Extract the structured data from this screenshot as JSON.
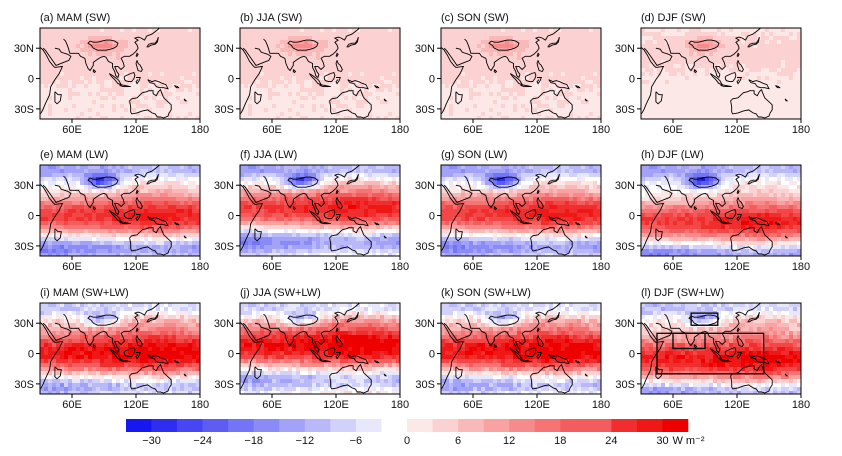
{
  "chart_data": {
    "type": "heatmap",
    "layout": {
      "rows": 3,
      "cols": 4
    },
    "lon_range": [
      30,
      180
    ],
    "lat_range": [
      -40,
      50
    ],
    "x_ticks": [
      "60E",
      "120E",
      "180"
    ],
    "x_tick_values": [
      60,
      120,
      180
    ],
    "y_ticks": [
      "30N",
      "0",
      "30S"
    ],
    "y_tick_values": [
      30,
      0,
      -30
    ],
    "panels": [
      {
        "label": "(a) MAM (SW)",
        "field": "sw",
        "season": 0
      },
      {
        "label": "(b) JJA (SW)",
        "field": "sw",
        "season": 1
      },
      {
        "label": "(c) SON (SW)",
        "field": "sw",
        "season": 2
      },
      {
        "label": "(d) DJF (SW)",
        "field": "sw",
        "season": 3
      },
      {
        "label": "(e) MAM (LW)",
        "field": "lw",
        "season": 0
      },
      {
        "label": "(f) JJA (LW)",
        "field": "lw",
        "season": 1
      },
      {
        "label": "(g) SON (LW)",
        "field": "lw",
        "season": 2
      },
      {
        "label": "(h) DJF (LW)",
        "field": "lw",
        "season": 3
      },
      {
        "label": "(i) MAM (SW+LW)",
        "field": "total",
        "season": 0
      },
      {
        "label": "(j) JJA (SW+LW)",
        "field": "total",
        "season": 1
      },
      {
        "label": "(k) SON (SW+LW)",
        "field": "total",
        "season": 2
      },
      {
        "label": "(l) DJF (SW+LW)",
        "field": "total",
        "season": 3
      }
    ],
    "boxes_in_panel_l": [
      {
        "lon": [
          77,
          102
        ],
        "lat": [
          28,
          40
        ]
      },
      {
        "lon": [
          60,
          90
        ],
        "lat": [
          5,
          20
        ]
      },
      {
        "lon": [
          45,
          145
        ],
        "lat": [
          -20,
          20
        ]
      }
    ],
    "colorbar": {
      "min": -33,
      "max": 33,
      "step": 3,
      "tick_labels": [
        "−30",
        "−24",
        "−18",
        "−12",
        "−6",
        "0",
        "6",
        "12",
        "18",
        "24",
        "30"
      ],
      "tick_values": [
        -30,
        -24,
        -18,
        -12,
        -6,
        0,
        6,
        12,
        18,
        24,
        30
      ],
      "unit": "W m⁻²",
      "negative_color": "#0000ee",
      "positive_color": "#ee0000"
    }
  }
}
